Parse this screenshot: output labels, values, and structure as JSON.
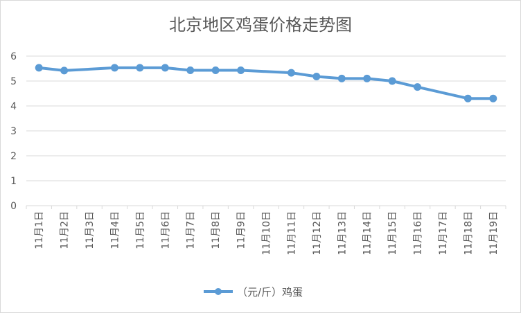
{
  "chart_data": {
    "type": "line",
    "title": "北京地区鸡蛋价格走势图",
    "categories": [
      "11月1日",
      "11月2日",
      "11月3日",
      "11月4日",
      "11月5日",
      "11月6日",
      "11月7日",
      "11月8日",
      "11月9日",
      "11月10日",
      "11月11日",
      "11月12日",
      "11月13日",
      "11月14日",
      "11月15日",
      "11月16日",
      "11月17日",
      "11月18日",
      "11月19日"
    ],
    "series": [
      {
        "name": "（元/斤）鸡蛋",
        "color": "#5b9bd5",
        "values": [
          5.53,
          5.42,
          null,
          5.53,
          5.53,
          5.53,
          5.43,
          5.43,
          5.43,
          null,
          5.33,
          5.18,
          5.1,
          5.1,
          5.0,
          4.76,
          null,
          4.3,
          4.3
        ]
      }
    ],
    "ylim": [
      0,
      6
    ],
    "yticks": [
      0,
      1,
      2,
      3,
      4,
      5,
      6
    ],
    "grid": true,
    "legend_position": "bottom"
  }
}
